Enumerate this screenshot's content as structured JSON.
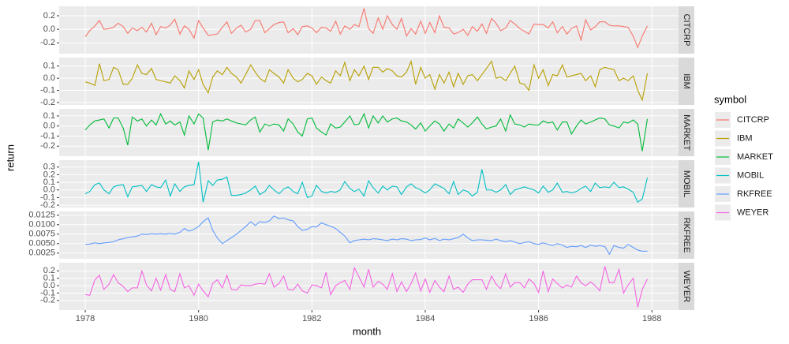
{
  "chart_data": {
    "type": "line",
    "facet": true,
    "x_label": "month",
    "y_label": "return",
    "legend_title": "symbol",
    "legend_position": "right",
    "grid": true,
    "xlim": [
      1977.54,
      1988.47
    ],
    "xticks": [
      1978,
      1980,
      1982,
      1984,
      1986,
      1988
    ],
    "x": [
      1978,
      1978.08,
      1978.17,
      1978.25,
      1978.33,
      1978.42,
      1978.5,
      1978.58,
      1978.67,
      1978.75,
      1978.83,
      1978.92,
      1979,
      1979.08,
      1979.17,
      1979.25,
      1979.33,
      1979.42,
      1979.5,
      1979.58,
      1979.67,
      1979.75,
      1979.83,
      1979.92,
      1980,
      1980.08,
      1980.17,
      1980.25,
      1980.33,
      1980.42,
      1980.5,
      1980.58,
      1980.67,
      1980.75,
      1980.83,
      1980.92,
      1981,
      1981.08,
      1981.17,
      1981.25,
      1981.33,
      1981.42,
      1981.5,
      1981.58,
      1981.67,
      1981.75,
      1981.83,
      1981.92,
      1982,
      1982.08,
      1982.17,
      1982.25,
      1982.33,
      1982.42,
      1982.5,
      1982.58,
      1982.67,
      1982.75,
      1982.83,
      1982.92,
      1983,
      1983.08,
      1983.17,
      1983.25,
      1983.33,
      1983.42,
      1983.5,
      1983.58,
      1983.67,
      1983.75,
      1983.83,
      1983.92,
      1984,
      1984.08,
      1984.17,
      1984.25,
      1984.33,
      1984.42,
      1984.5,
      1984.58,
      1984.67,
      1984.75,
      1984.83,
      1984.92,
      1985,
      1985.08,
      1985.17,
      1985.25,
      1985.33,
      1985.42,
      1985.5,
      1985.58,
      1985.67,
      1985.75,
      1985.83,
      1985.92,
      1986,
      1986.08,
      1986.17,
      1986.25,
      1986.33,
      1986.42,
      1986.5,
      1986.58,
      1986.67,
      1986.75,
      1986.83,
      1986.92,
      1987,
      1987.08,
      1987.17,
      1987.25,
      1987.33,
      1987.42,
      1987.5,
      1987.58,
      1987.67,
      1987.75,
      1987.83,
      1987.92
    ],
    "series": [
      {
        "name": "CITCRP",
        "color": "#F8766D",
        "ylim": [
          -0.36,
          0.34
        ],
        "yticks": [
          -0.2,
          {
            "value": 0,
            "label": "0.0"
          },
          0.2
        ],
        "values": [
          -0.11,
          -0.02,
          0.05,
          0.13,
          0.0,
          0.01,
          0.03,
          0.09,
          0.04,
          -0.06,
          0.02,
          -0.02,
          0.03,
          -0.04,
          0.09,
          -0.08,
          0.04,
          0.02,
          0.06,
          0.15,
          -0.07,
          0.05,
          0.0,
          -0.13,
          0.13,
          0.02,
          -0.09,
          -0.08,
          -0.07,
          0.03,
          0.11,
          -0.06,
          0.02,
          0.06,
          -0.04,
          0.0,
          0.13,
          0.13,
          -0.05,
          0.01,
          0.07,
          0.1,
          0.11,
          -0.05,
          0.01,
          -0.08,
          0.04,
          0.05,
          0.02,
          -0.05,
          0.03,
          0.02,
          -0.03,
          0.12,
          -0.07,
          0.05,
          0.0,
          0.07,
          0.04,
          0.31,
          0.01,
          -0.06,
          0.17,
          0.0,
          0.2,
          0.07,
          0.0,
          0.16,
          -0.1,
          0.01,
          -0.07,
          0.12,
          -0.06,
          0.1,
          -0.05,
          0.2,
          0.03,
          0.02,
          -0.07,
          -0.05,
          0.0,
          -0.09,
          0.04,
          -0.03,
          0.08,
          -0.06,
          0.16,
          0.09,
          -0.02,
          0.02,
          0.13,
          0.08,
          0.01,
          -0.03,
          -0.07,
          0.08,
          0.07,
          0.07,
          0.02,
          0.11,
          -0.05,
          0.04,
          -0.07,
          0.01,
          0.05,
          -0.16,
          0.14,
          -0.01,
          0.04,
          0.11,
          0.11,
          0.06,
          0.05,
          0.05,
          0.04,
          0.03,
          -0.1,
          -0.27,
          -0.1,
          0.05
        ]
      },
      {
        "name": "IBM",
        "color": "#B79F00",
        "ylim": [
          -0.22,
          0.17
        ],
        "yticks": [
          -0.2,
          -0.1,
          {
            "value": 0,
            "label": "0.0"
          },
          0.1
        ],
        "values": [
          -0.03,
          -0.04,
          -0.06,
          0.12,
          -0.02,
          -0.01,
          0.09,
          0.07,
          -0.05,
          -0.05,
          0.0,
          0.11,
          0.04,
          0.03,
          0.08,
          -0.01,
          -0.02,
          -0.03,
          -0.04,
          0.02,
          -0.02,
          -0.08,
          0.06,
          -0.01,
          0.07,
          -0.05,
          -0.12,
          0.01,
          0.06,
          0.03,
          0.09,
          0.04,
          0.01,
          -0.04,
          0.03,
          0.11,
          0.05,
          0.0,
          -0.03,
          0.07,
          0.04,
          0.01,
          -0.04,
          0.07,
          0.0,
          -0.03,
          -0.01,
          0.04,
          0.02,
          -0.05,
          0.01,
          -0.02,
          -0.04,
          0.06,
          0.02,
          0.13,
          -0.02,
          0.07,
          0.02,
          0.1,
          -0.01,
          0.09,
          0.09,
          0.05,
          0.08,
          0.06,
          0.02,
          0.01,
          0.05,
          0.14,
          -0.05,
          0.09,
          0.0,
          0.03,
          -0.09,
          0.03,
          -0.04,
          0.05,
          -0.07,
          0.04,
          -0.05,
          0.02,
          0.03,
          -0.02,
          0.03,
          0.08,
          0.14,
          0.0,
          0.01,
          -0.02,
          0.04,
          0.1,
          -0.04,
          -0.05,
          -0.1,
          0.11,
          0.0,
          0.07,
          -0.06,
          0.03,
          0.02,
          0.11,
          0.01,
          0.02,
          0.03,
          0.04,
          -0.02,
          0.02,
          -0.07,
          0.07,
          0.09,
          0.08,
          0.07,
          -0.02,
          0.0,
          -0.02,
          0.02,
          -0.1,
          -0.18,
          0.04
        ]
      },
      {
        "name": "MARKET",
        "color": "#00BA38",
        "ylim": [
          -0.3,
          0.17
        ],
        "yticks": [
          -0.2,
          -0.1,
          {
            "value": 0,
            "label": "0.0"
          },
          0.1
        ],
        "values": [
          -0.04,
          0.01,
          0.05,
          0.06,
          0.07,
          -0.02,
          0.08,
          0.08,
          -0.02,
          -0.19,
          0.09,
          0.05,
          0.07,
          0.0,
          0.06,
          0.01,
          0.12,
          0.02,
          0.05,
          0.01,
          0.04,
          -0.09,
          0.1,
          0.02,
          0.12,
          0.08,
          -0.24,
          0.04,
          0.06,
          0.05,
          0.07,
          0.05,
          0.03,
          0.02,
          0.01,
          0.06,
          0.09,
          -0.06,
          0.02,
          0.0,
          0.02,
          0.01,
          -0.05,
          0.07,
          0.02,
          -0.06,
          -0.1,
          0.07,
          0.08,
          -0.02,
          -0.06,
          -0.09,
          0.02,
          -0.02,
          -0.01,
          0.04,
          0.1,
          0.01,
          0.02,
          0.12,
          -0.02,
          0.1,
          0.03,
          0.1,
          0.04,
          0.07,
          0.08,
          0.05,
          0.04,
          0.01,
          -0.03,
          0.03,
          -0.05,
          0.0,
          0.05,
          0.02,
          -0.05,
          0.02,
          -0.02,
          0.07,
          0.03,
          -0.01,
          0.03,
          0.09,
          0.02,
          -0.03,
          -0.01,
          0.0,
          0.07,
          -0.05,
          0.11,
          0.02,
          0.01,
          -0.01,
          0.02,
          0.01,
          0.01,
          0.05,
          0.03,
          0.04,
          -0.04,
          0.04,
          0.04,
          -0.08,
          0.0,
          0.06,
          0.02,
          0.04,
          0.06,
          0.08,
          0.07,
          0.01,
          0.0,
          -0.02,
          0.04,
          0.03,
          0.06,
          0.02,
          -0.25,
          0.07
        ]
      },
      {
        "name": "MOBIL",
        "color": "#00BFC4",
        "ylim": [
          -0.23,
          0.39
        ],
        "yticks": [
          -0.2,
          -0.1,
          {
            "value": 0,
            "label": "0.0"
          },
          0.1,
          0.2,
          0.3
        ],
        "values": [
          -0.05,
          -0.02,
          0.07,
          0.09,
          0.0,
          -0.05,
          0.04,
          0.06,
          0.07,
          -0.09,
          0.04,
          0.05,
          0.06,
          -0.02,
          0.07,
          0.04,
          0.03,
          0.13,
          -0.08,
          0.08,
          -0.02,
          0.04,
          0.06,
          0.07,
          0.37,
          -0.16,
          0.12,
          0.06,
          0.13,
          0.14,
          0.17,
          -0.07,
          -0.07,
          -0.06,
          -0.04,
          0.0,
          0.05,
          -0.06,
          -0.02,
          0.06,
          0.0,
          -0.05,
          0.01,
          0.04,
          -0.02,
          -0.05,
          0.1,
          -0.1,
          -0.08,
          0.06,
          -0.02,
          -0.04,
          -0.02,
          -0.03,
          0.0,
          0.11,
          0.02,
          -0.02,
          0.01,
          -0.08,
          0.12,
          0.03,
          -0.04,
          0.05,
          0.0,
          0.05,
          0.04,
          -0.06,
          0.04,
          0.08,
          0.03,
          0.0,
          -0.04,
          0.0,
          0.08,
          0.05,
          0.02,
          -0.05,
          0.11,
          -0.06,
          0.0,
          -0.02,
          -0.08,
          -0.03,
          0.27,
          0.0,
          0.0,
          -0.03,
          0.0,
          0.07,
          -0.06,
          0.0,
          0.02,
          0.04,
          0.02,
          0.0,
          -0.04,
          0.05,
          -0.03,
          0.0,
          0.09,
          -0.03,
          -0.02,
          -0.04,
          -0.02,
          0.02,
          0.05,
          -0.02,
          0.09,
          0.03,
          0.04,
          0.03,
          0.1,
          0.03,
          0.04,
          0.01,
          -0.03,
          -0.16,
          -0.12,
          0.16
        ]
      },
      {
        "name": "RKFREE",
        "color": "#619CFF",
        "ylim": [
          0.001,
          0.0135
        ],
        "yticks": [
          0.0025,
          {
            "value": 0.005,
            "label": "0.0050"
          },
          0.0075,
          {
            "value": 0.01,
            "label": "0.0100"
          },
          0.0125
        ],
        "values": [
          0.0048,
          0.0049,
          0.0052,
          0.005,
          0.0052,
          0.0053,
          0.0055,
          0.006,
          0.0063,
          0.0066,
          0.0068,
          0.007,
          0.0075,
          0.0074,
          0.0076,
          0.0075,
          0.0076,
          0.0075,
          0.0077,
          0.0075,
          0.008,
          0.009,
          0.0083,
          0.0088,
          0.0095,
          0.0108,
          0.0118,
          0.0085,
          0.0065,
          0.005,
          0.0058,
          0.0066,
          0.0075,
          0.0085,
          0.0095,
          0.0108,
          0.0098,
          0.0108,
          0.0106,
          0.011,
          0.0123,
          0.0116,
          0.0118,
          0.0113,
          0.011,
          0.0095,
          0.0085,
          0.0088,
          0.0095,
          0.0094,
          0.0105,
          0.01,
          0.0096,
          0.009,
          0.008,
          0.007,
          0.0052,
          0.0058,
          0.006,
          0.0062,
          0.006,
          0.0063,
          0.0062,
          0.006,
          0.0058,
          0.0062,
          0.006,
          0.0063,
          0.0062,
          0.0058,
          0.006,
          0.0061,
          0.0065,
          0.006,
          0.0064,
          0.0058,
          0.0062,
          0.006,
          0.0063,
          0.0066,
          0.0075,
          0.0065,
          0.0058,
          0.006,
          0.006,
          0.0059,
          0.0058,
          0.0062,
          0.0058,
          0.0055,
          0.0058,
          0.0054,
          0.005,
          0.0053,
          0.0055,
          0.005,
          0.0048,
          0.0052,
          0.0048,
          0.0045,
          0.005,
          0.0046,
          0.004,
          0.0043,
          0.0042,
          0.0045,
          0.004,
          0.0046,
          0.0043,
          0.0045,
          0.0042,
          0.0022,
          0.0045,
          0.004,
          0.0038,
          0.0048,
          0.004,
          0.0033,
          0.003,
          0.003
        ]
      },
      {
        "name": "WEYER",
        "color": "#F564E3",
        "ylim": [
          -0.33,
          0.31
        ],
        "yticks": [
          -0.2,
          -0.1,
          {
            "value": 0,
            "label": "0.0"
          },
          0.1,
          0.2
        ],
        "values": [
          -0.12,
          -0.13,
          0.08,
          0.14,
          -0.05,
          0.02,
          0.15,
          0.04,
          -0.01,
          -0.08,
          -0.03,
          -0.03,
          0.2,
          0.01,
          -0.07,
          0.1,
          -0.06,
          0.15,
          -0.05,
          -0.08,
          0.16,
          -0.03,
          0.0,
          -0.13,
          0.02,
          -0.07,
          -0.15,
          0.03,
          0.08,
          -0.03,
          0.14,
          -0.05,
          -0.06,
          0.01,
          0.0,
          0.0,
          0.02,
          0.03,
          0.02,
          0.16,
          -0.02,
          0.03,
          0.13,
          -0.05,
          -0.06,
          0.02,
          -0.07,
          -0.1,
          0.01,
          0.0,
          -0.03,
          0.18,
          -0.12,
          0.0,
          0.04,
          0.07,
          -0.05,
          0.24,
          0.12,
          -0.02,
          0.22,
          -0.02,
          0.06,
          0.02,
          -0.05,
          0.16,
          -0.08,
          0.05,
          -0.08,
          0.03,
          0.17,
          -0.07,
          0.09,
          -0.09,
          0.07,
          -0.02,
          -0.08,
          0.13,
          -0.05,
          -0.02,
          -0.09,
          0.02,
          0.08,
          0.08,
          0.08,
          -0.05,
          0.13,
          0.02,
          -0.04,
          0.16,
          -0.02,
          0.04,
          0.04,
          -0.03,
          0.09,
          0.03,
          -0.09,
          0.2,
          -0.08,
          0.09,
          0.03,
          -0.03,
          0.01,
          -0.02,
          0.13,
          0.04,
          0.0,
          0.05,
          0.0,
          -0.07,
          0.26,
          0.04,
          0.04,
          0.22,
          -0.1,
          0.01,
          0.1,
          -0.29,
          -0.05,
          0.09
        ]
      }
    ]
  }
}
